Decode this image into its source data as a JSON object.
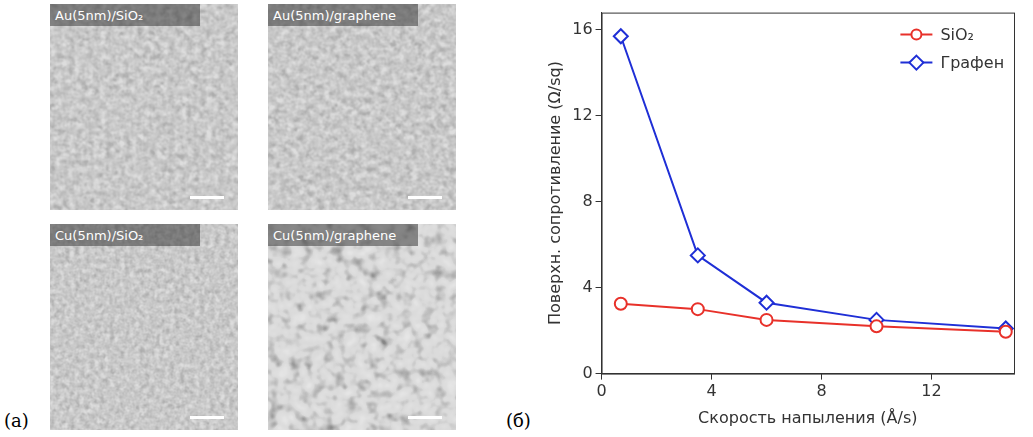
{
  "figure": {
    "panels": [
      {
        "letter": "(a)",
        "images": [
          {
            "label": "Au(5nm)/SiO₂"
          },
          {
            "label": "Au(5nm)/graphene"
          },
          {
            "label": "Cu(5nm)/SiO₂"
          },
          {
            "label": "Cu(5nm)/graphene"
          }
        ]
      },
      {
        "letter": "(б)"
      }
    ]
  },
  "chart_data": {
    "type": "line",
    "x_label": "Скорость напыления (Å/s)",
    "y_label": "Поверхн. сопротивление (Ω/sq)",
    "x": [
      0.7,
      3.5,
      6,
      10,
      14.7
    ],
    "series": [
      {
        "name": "SiO₂",
        "color": "#e8312a",
        "marker": "circle",
        "line_style": "solid",
        "values": [
          3.25,
          3.0,
          2.5,
          2.2,
          1.95
        ]
      },
      {
        "name": "Графен",
        "color": "#1f2fd6",
        "marker": "diamond",
        "line_style": "solid",
        "values": [
          15.7,
          5.5,
          3.3,
          2.5,
          2.1
        ]
      }
    ],
    "xlim": [
      0,
      15
    ],
    "xticks": [
      0,
      4,
      8,
      12
    ],
    "ylim": [
      0,
      16.8
    ],
    "yticks": [
      0,
      4,
      8,
      12,
      16
    ],
    "grid": false,
    "legend": "upper right"
  }
}
